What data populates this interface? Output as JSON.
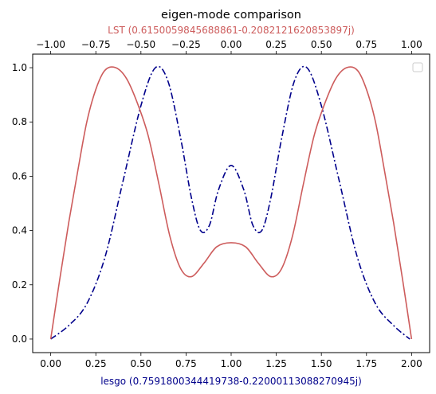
{
  "chart_data": {
    "type": "line",
    "title": "eigen-mode comparison",
    "xlabel": "lesgo (0.7591800344419738-0.22000113088270945j)",
    "xlabel_top": "LST (0.6150059845688861-0.2082121620853897j)",
    "xlim": [
      -0.1,
      2.1
    ],
    "ylim": [
      -0.05,
      1.05
    ],
    "xlim_top": [
      -1.1,
      1.1
    ],
    "xticks": [
      "0.00",
      "0.25",
      "0.50",
      "0.75",
      "1.00",
      "1.25",
      "1.50",
      "1.75",
      "2.00"
    ],
    "xticks_top": [
      "−1.00",
      "−0.75",
      "−0.50",
      "−0.25",
      "0.00",
      "0.25",
      "0.50",
      "0.75",
      "1.00"
    ],
    "yticks": [
      "0.0",
      "0.2",
      "0.4",
      "0.6",
      "0.8",
      "1.0"
    ],
    "grid": false,
    "legend": "upper right (empty)",
    "series": [
      {
        "color": "#00008b",
        "linestyle": "dash-dot",
        "axis": "bottom",
        "x": [
          0.0,
          0.1,
          0.2,
          0.3,
          0.4,
          0.5,
          0.58,
          0.65,
          0.72,
          0.78,
          0.83,
          0.88,
          0.93,
          1.0,
          1.07,
          1.12,
          1.17,
          1.22,
          1.28,
          1.35,
          1.42,
          1.5,
          1.6,
          1.7,
          1.8,
          1.9,
          1.99
        ],
        "y": [
          0.0,
          0.05,
          0.13,
          0.3,
          0.58,
          0.86,
          1.0,
          0.95,
          0.74,
          0.52,
          0.4,
          0.42,
          0.55,
          0.64,
          0.55,
          0.42,
          0.4,
          0.52,
          0.74,
          0.95,
          1.0,
          0.86,
          0.58,
          0.3,
          0.13,
          0.05,
          0.0
        ]
      },
      {
        "color": "#cd5c5c",
        "linestyle": "solid",
        "axis": "top",
        "x": [
          -1.0,
          -0.95,
          -0.9,
          -0.85,
          -0.8,
          -0.75,
          -0.7,
          -0.64,
          -0.58,
          -0.52,
          -0.46,
          -0.4,
          -0.34,
          -0.28,
          -0.22,
          -0.15,
          -0.08,
          0.0,
          0.08,
          0.15,
          0.22,
          0.28,
          0.34,
          0.4,
          0.46,
          0.52,
          0.58,
          0.64,
          0.7,
          0.75,
          0.8,
          0.85,
          0.9,
          0.95,
          1.0
        ],
        "y": [
          0.0,
          0.22,
          0.43,
          0.62,
          0.8,
          0.92,
          0.99,
          1.0,
          0.96,
          0.87,
          0.75,
          0.57,
          0.38,
          0.26,
          0.23,
          0.28,
          0.34,
          0.355,
          0.34,
          0.28,
          0.23,
          0.26,
          0.38,
          0.57,
          0.75,
          0.87,
          0.96,
          1.0,
          0.99,
          0.92,
          0.8,
          0.62,
          0.43,
          0.22,
          0.0
        ]
      }
    ]
  }
}
